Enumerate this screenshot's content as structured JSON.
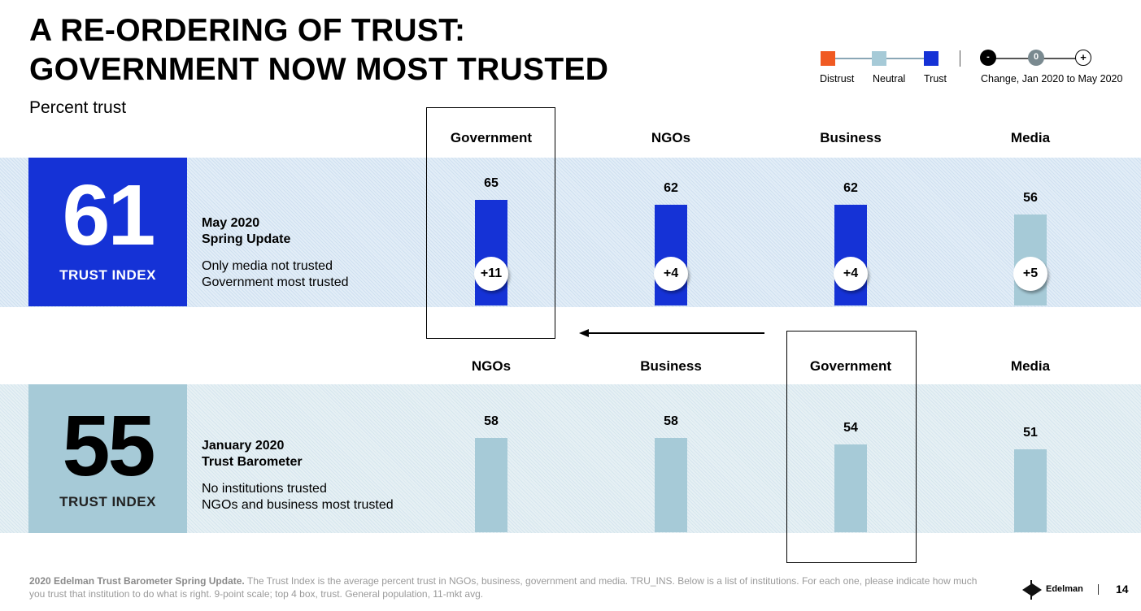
{
  "title": {
    "line1": "A RE-ORDERING OF TRUST:",
    "line2": "GOVERNMENT NOW MOST TRUSTED"
  },
  "subtitle": "Percent trust",
  "legend": {
    "distrust": "Distrust",
    "neutral": "Neutral",
    "trust": "Trust",
    "change_minus": "-",
    "change_zero": "0",
    "change_plus": "+",
    "change_label": "Change, Jan 2020 to May 2020",
    "colors": {
      "distrust": "#f05a22",
      "neutral": "#a6cad7",
      "trust": "#1532d6"
    }
  },
  "panels": [
    {
      "index_value": "61",
      "index_label": "TRUST INDEX",
      "heading1": "May 2020",
      "heading2": "Spring Update",
      "line1": "Only media not trusted",
      "line2": "Government most trusted"
    },
    {
      "index_value": "55",
      "index_label": "TRUST INDEX",
      "heading1": "January 2020",
      "heading2": "Trust Barometer",
      "line1": "No institutions trusted",
      "line2": "NGOs and business most trusted"
    }
  ],
  "chart_data": [
    {
      "type": "bar",
      "categories": [
        "Government",
        "NGOs",
        "Business",
        "Media"
      ],
      "values": [
        65,
        62,
        62,
        56
      ],
      "changes": [
        "+11",
        "+4",
        "+4",
        "+5"
      ],
      "bar_status": [
        "trust",
        "trust",
        "trust",
        "neutral"
      ],
      "highlight": "Government"
    },
    {
      "type": "bar",
      "categories": [
        "NGOs",
        "Business",
        "Government",
        "Media"
      ],
      "values": [
        58,
        58,
        54,
        51
      ],
      "bar_status": [
        "neutral",
        "neutral",
        "neutral",
        "neutral"
      ],
      "highlight": "Government"
    }
  ],
  "footnote": {
    "bold": "2020 Edelman Trust Barometer Spring Update.",
    "text": " The Trust Index is the average percent trust in NGOs, business, government and media. TRU_INS. Below is a list of institutions. For each one, please indicate how much you trust that institution to do what is right. 9-point scale; top 4 box, trust. General population, 11-mkt avg."
  },
  "brand": "Edelman",
  "page_number": "14"
}
